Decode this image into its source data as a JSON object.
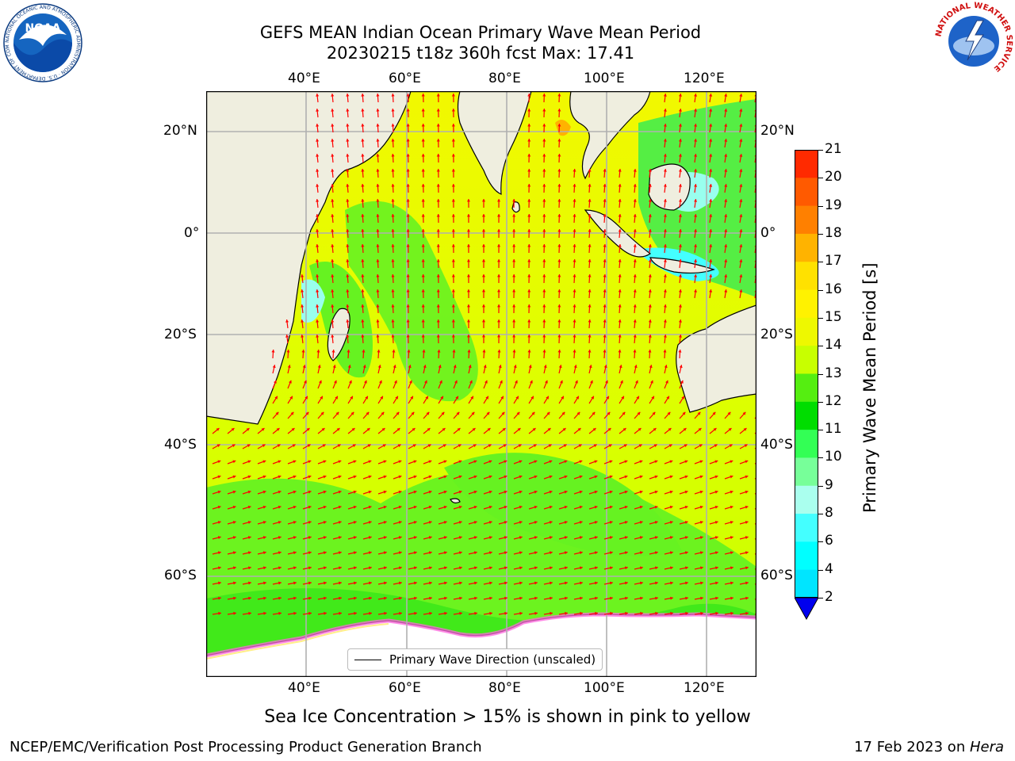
{
  "title": {
    "line1": "GEFS MEAN Indian Ocean Primary Wave Mean Period",
    "line2": "20230215 t18z 360h fcst   Max: 17.41"
  },
  "map": {
    "lon_labels": [
      "40°E",
      "60°E",
      "80°E",
      "100°E",
      "120°E"
    ],
    "lat_labels": [
      "20°N",
      "0°",
      "20°S",
      "40°S",
      "60°S"
    ],
    "legend_label": "Primary Wave Direction (unscaled)",
    "arrow_color": "#ff0000",
    "land_color": "#efeedf"
  },
  "colorbar": {
    "title": "Primary Wave Mean Period [s]",
    "ticks": [
      "21",
      "20",
      "19",
      "18",
      "17",
      "16",
      "15",
      "14",
      "13",
      "12",
      "11",
      "10",
      "9",
      "8",
      "6",
      "4",
      "2"
    ],
    "colors": [
      "#ff0000",
      "#ff2a00",
      "#ff5a00",
      "#ff8000",
      "#ffb300",
      "#ffe100",
      "#fff200",
      "#eef800",
      "#c8ff00",
      "#55ee11",
      "#00dd00",
      "#33ff55",
      "#77ff99",
      "#aaffee",
      "#44ffff",
      "#00ffff",
      "#00e5ff",
      "#0077ff"
    ],
    "extend_color": "#0000ee"
  },
  "subtitle": "Sea Ice Concentration > 15% is shown in pink to yellow",
  "footer": {
    "left": "NCEP/EMC/Verification Post Processing Product Generation Branch",
    "right_prefix": "17 Feb 2023 on ",
    "right_host": "Hera"
  },
  "logos": {
    "noaa_text": "NOAA",
    "noaa_ring": "NATIONAL OCEANIC AND ATMOSPHERIC ADMINISTRATION · U.S. DEPARTMENT OF COMMERCE",
    "nws_ring": "NATIONAL WEATHER SERVICE"
  }
}
